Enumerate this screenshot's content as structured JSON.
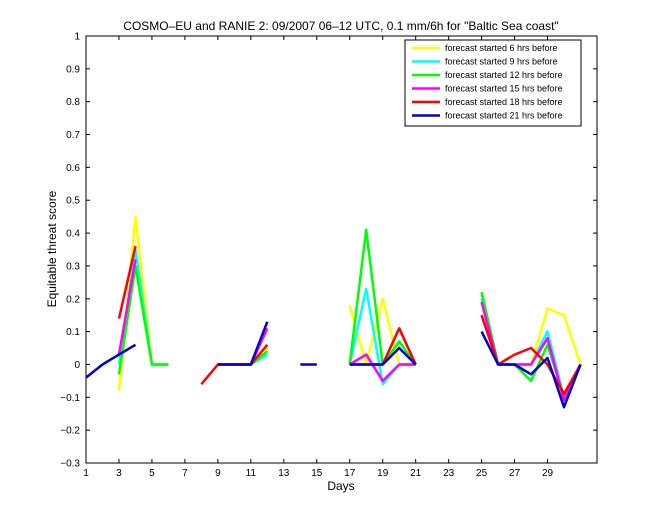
{
  "chart_data": {
    "type": "line",
    "title": "COSMO–EU and RANIE 2: 09/2007 06–12 UTC, 0.1 mm/6h for \"Baltic Sea coast\"",
    "xlabel": "Days",
    "ylabel": "Equitable threat score",
    "xlim": [
      1,
      32
    ],
    "ylim": [
      -0.3,
      1
    ],
    "x_ticks": [
      1,
      3,
      5,
      7,
      9,
      11,
      13,
      15,
      17,
      19,
      21,
      23,
      25,
      27,
      29
    ],
    "y_ticks": [
      -0.3,
      -0.2,
      -0.1,
      0,
      0.1,
      0.2,
      0.3,
      0.4,
      0.5,
      0.6,
      0.7,
      0.8,
      0.9,
      1
    ],
    "y_tick_labels": [
      "−0.3",
      "−0.2",
      "−0.1",
      "0",
      "0.1",
      "0.2",
      "0.3",
      "0.4",
      "0.5",
      "0.6",
      "0.7",
      "0.8",
      "0.9",
      "1"
    ],
    "grid": false,
    "legend_position": "top-right",
    "x": [
      1,
      2,
      3,
      4,
      5,
      6,
      7,
      8,
      9,
      10,
      11,
      12,
      13,
      14,
      15,
      16,
      17,
      18,
      19,
      20,
      21,
      22,
      23,
      24,
      25,
      26,
      27,
      28,
      29,
      30,
      31
    ],
    "series": [
      {
        "name": "forecast started 6 hrs before",
        "color": "#ffff00",
        "values": [
          null,
          null,
          -0.08,
          0.45,
          0.0,
          0.0,
          null,
          null,
          0.0,
          0.0,
          0.0,
          0.05,
          null,
          null,
          null,
          null,
          0.18,
          0.0,
          0.2,
          0.0,
          0.0,
          null,
          null,
          null,
          0.22,
          0.0,
          0.0,
          0.0,
          0.17,
          0.15,
          0.0
        ]
      },
      {
        "name": "forecast started 9 hrs before",
        "color": "#00ffff",
        "values": [
          null,
          null,
          0.0,
          0.35,
          0.0,
          0.0,
          null,
          null,
          0.0,
          0.0,
          0.0,
          0.03,
          null,
          null,
          null,
          null,
          0.0,
          0.23,
          -0.06,
          0.0,
          0.0,
          null,
          null,
          null,
          0.2,
          0.0,
          0.0,
          0.0,
          0.1,
          -0.1,
          0.0
        ]
      },
      {
        "name": "forecast started 12 hrs before",
        "color": "#00ff00",
        "values": [
          null,
          null,
          -0.03,
          0.3,
          0.0,
          0.0,
          null,
          null,
          0.0,
          0.0,
          0.0,
          0.04,
          null,
          null,
          null,
          null,
          0.0,
          0.41,
          0.0,
          0.07,
          0.0,
          null,
          null,
          null,
          0.22,
          0.0,
          0.0,
          -0.05,
          0.06,
          -0.1,
          0.0
        ]
      },
      {
        "name": "forecast started 15 hrs before",
        "color": "#ff00ff",
        "values": [
          null,
          null,
          0.03,
          0.32,
          null,
          null,
          null,
          null,
          0.0,
          0.0,
          0.0,
          0.11,
          null,
          null,
          null,
          null,
          0.0,
          0.03,
          -0.05,
          0.0,
          0.0,
          null,
          null,
          null,
          0.19,
          0.0,
          0.0,
          0.0,
          0.08,
          -0.11,
          0.0
        ]
      },
      {
        "name": "forecast started 18 hrs before",
        "color": "#ff0000",
        "values": [
          null,
          null,
          0.14,
          0.36,
          null,
          null,
          null,
          -0.06,
          0.0,
          0.0,
          0.0,
          0.06,
          null,
          null,
          null,
          null,
          0.0,
          0.0,
          0.0,
          0.11,
          0.0,
          null,
          null,
          null,
          0.15,
          0.0,
          0.03,
          0.05,
          0.0,
          -0.09,
          0.0
        ]
      },
      {
        "name": "forecast started 21 hrs before",
        "color": "#0000cc",
        "values": [
          -0.04,
          0.0,
          0.03,
          0.06,
          null,
          null,
          null,
          null,
          0.0,
          0.0,
          0.0,
          0.13,
          null,
          0.0,
          0.0,
          null,
          0.0,
          0.0,
          0.0,
          0.05,
          0.0,
          null,
          null,
          null,
          0.1,
          0.0,
          0.0,
          -0.03,
          0.02,
          -0.13,
          0.0
        ]
      }
    ]
  }
}
